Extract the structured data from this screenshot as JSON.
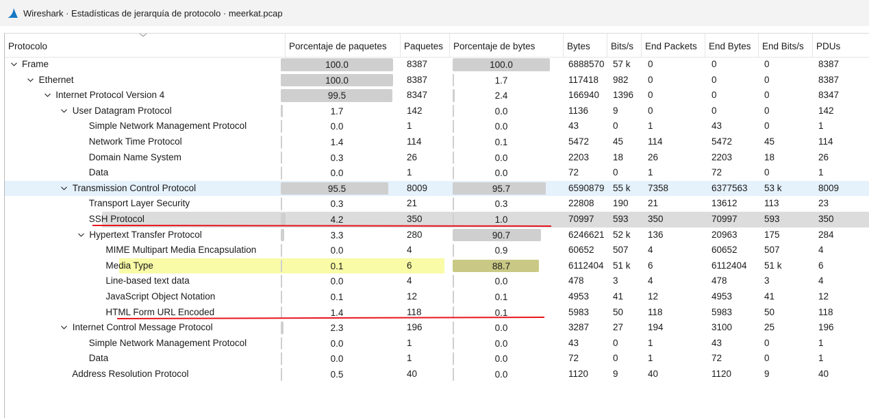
{
  "window": {
    "title": "Wireshark · Estadísticas de jerarquía de protocolo · meerkat.pcap",
    "icon": "wireshark-fin-icon"
  },
  "colors": {
    "bar_gray": "#cfcfcf",
    "selected_row": "#e5f1fb",
    "highlight_row": "#f9fba6",
    "highlight_bar": "#c9c985",
    "annotation_red": "#e8141c"
  },
  "columns": [
    "Protocolo",
    "Porcentaje de paquetes",
    "Paquetes",
    "Porcentaje de bytes",
    "Bytes",
    "Bits/s",
    "End Packets",
    "End Bytes",
    "End Bits/s",
    "PDUs"
  ],
  "rows": [
    {
      "name": "Frame",
      "level": 0,
      "expandable": true,
      "pkt_pct": "100.0",
      "packets": "8387",
      "byte_pct": "100.0",
      "bytes": "6888570",
      "bits": "57 k",
      "end_packets": "0",
      "end_bytes": "0",
      "end_bits": "0",
      "pdus": "8387"
    },
    {
      "name": "Ethernet",
      "level": 1,
      "expandable": true,
      "pkt_pct": "100.0",
      "packets": "8387",
      "byte_pct": "1.7",
      "bytes": "117418",
      "bits": "982",
      "end_packets": "0",
      "end_bytes": "0",
      "end_bits": "0",
      "pdus": "8387"
    },
    {
      "name": "Internet Protocol Version 4",
      "level": 2,
      "expandable": true,
      "pkt_pct": "99.5",
      "packets": "8347",
      "byte_pct": "2.4",
      "bytes": "166940",
      "bits": "1396",
      "end_packets": "0",
      "end_bytes": "0",
      "end_bits": "0",
      "pdus": "8347"
    },
    {
      "name": "User Datagram Protocol",
      "level": 3,
      "expandable": true,
      "pkt_pct": "1.7",
      "packets": "142",
      "byte_pct": "0.0",
      "bytes": "1136",
      "bits": "9",
      "end_packets": "0",
      "end_bytes": "0",
      "end_bits": "0",
      "pdus": "142"
    },
    {
      "name": "Simple Network Management Protocol",
      "level": 4,
      "expandable": false,
      "pkt_pct": "0.0",
      "packets": "1",
      "byte_pct": "0.0",
      "bytes": "43",
      "bits": "0",
      "end_packets": "1",
      "end_bytes": "43",
      "end_bits": "0",
      "pdus": "1"
    },
    {
      "name": "Network Time Protocol",
      "level": 4,
      "expandable": false,
      "pkt_pct": "1.4",
      "packets": "114",
      "byte_pct": "0.1",
      "bytes": "5472",
      "bits": "45",
      "end_packets": "114",
      "end_bytes": "5472",
      "end_bits": "45",
      "pdus": "114"
    },
    {
      "name": "Domain Name System",
      "level": 4,
      "expandable": false,
      "pkt_pct": "0.3",
      "packets": "26",
      "byte_pct": "0.0",
      "bytes": "2203",
      "bits": "18",
      "end_packets": "26",
      "end_bytes": "2203",
      "end_bits": "18",
      "pdus": "26"
    },
    {
      "name": "Data",
      "level": 4,
      "expandable": false,
      "pkt_pct": "0.0",
      "packets": "1",
      "byte_pct": "0.0",
      "bytes": "72",
      "bits": "0",
      "end_packets": "1",
      "end_bytes": "72",
      "end_bits": "0",
      "pdus": "1"
    },
    {
      "name": "Transmission Control Protocol",
      "level": 3,
      "expandable": true,
      "state": "selected",
      "pkt_pct": "95.5",
      "packets": "8009",
      "byte_pct": "95.7",
      "bytes": "6590879",
      "bits": "55 k",
      "end_packets": "7358",
      "end_bytes": "6377563",
      "end_bits": "53 k",
      "pdus": "8009"
    },
    {
      "name": "Transport Layer Security",
      "level": 4,
      "expandable": false,
      "pkt_pct": "0.3",
      "packets": "21",
      "byte_pct": "0.3",
      "bytes": "22808",
      "bits": "190",
      "end_packets": "21",
      "end_bytes": "13612",
      "end_bits": "113",
      "pdus": "23"
    },
    {
      "name": "SSH Protocol",
      "level": 4,
      "expandable": false,
      "state": "hover",
      "pkt_pct": "4.2",
      "packets": "350",
      "byte_pct": "1.0",
      "bytes": "70997",
      "bits": "593",
      "end_packets": "350",
      "end_bytes": "70997",
      "end_bits": "593",
      "pdus": "350"
    },
    {
      "name": "Hypertext Transfer Protocol",
      "level": 4,
      "expandable": true,
      "pkt_pct": "3.3",
      "packets": "280",
      "byte_pct": "90.7",
      "bytes": "6246621",
      "bits": "52 k",
      "end_packets": "136",
      "end_bytes": "20963",
      "end_bits": "175",
      "pdus": "284"
    },
    {
      "name": "MIME Multipart Media Encapsulation",
      "level": 5,
      "expandable": false,
      "pkt_pct": "0.0",
      "packets": "4",
      "byte_pct": "0.9",
      "bytes": "60652",
      "bits": "507",
      "end_packets": "4",
      "end_bytes": "60652",
      "end_bits": "507",
      "pdus": "4"
    },
    {
      "name": "Media Type",
      "level": 5,
      "expandable": false,
      "state": "highlight",
      "pkt_pct": "0.1",
      "packets": "6",
      "byte_pct": "88.7",
      "bytes": "6112404",
      "bits": "51 k",
      "end_packets": "6",
      "end_bytes": "6112404",
      "end_bits": "51 k",
      "pdus": "6"
    },
    {
      "name": "Line-based text data",
      "level": 5,
      "expandable": false,
      "pkt_pct": "0.0",
      "packets": "4",
      "byte_pct": "0.0",
      "bytes": "478",
      "bits": "3",
      "end_packets": "4",
      "end_bytes": "478",
      "end_bits": "3",
      "pdus": "4"
    },
    {
      "name": "JavaScript Object Notation",
      "level": 5,
      "expandable": false,
      "pkt_pct": "0.1",
      "packets": "12",
      "byte_pct": "0.1",
      "bytes": "4953",
      "bits": "41",
      "end_packets": "12",
      "end_bytes": "4953",
      "end_bits": "41",
      "pdus": "12"
    },
    {
      "name": "HTML Form URL Encoded",
      "level": 5,
      "expandable": false,
      "pkt_pct": "1.4",
      "packets": "118",
      "byte_pct": "0.1",
      "bytes": "5983",
      "bits": "50",
      "end_packets": "118",
      "end_bytes": "5983",
      "end_bits": "50",
      "pdus": "118"
    },
    {
      "name": "Internet Control Message Protocol",
      "level": 3,
      "expandable": true,
      "pkt_pct": "2.3",
      "packets": "196",
      "byte_pct": "0.0",
      "bytes": "3287",
      "bits": "27",
      "end_packets": "194",
      "end_bytes": "3100",
      "end_bits": "25",
      "pdus": "196"
    },
    {
      "name": "Simple Network Management Protocol",
      "level": 4,
      "expandable": false,
      "pkt_pct": "0.0",
      "packets": "1",
      "byte_pct": "0.0",
      "bytes": "43",
      "bits": "0",
      "end_packets": "1",
      "end_bytes": "43",
      "end_bits": "0",
      "pdus": "1"
    },
    {
      "name": "Data",
      "level": 4,
      "expandable": false,
      "pkt_pct": "0.0",
      "packets": "1",
      "byte_pct": "0.0",
      "bytes": "72",
      "bits": "0",
      "end_packets": "1",
      "end_bytes": "72",
      "end_bits": "0",
      "pdus": "1"
    },
    {
      "name": "Address Resolution Protocol",
      "level": 3,
      "expandable": false,
      "pkt_pct": "0.5",
      "packets": "40",
      "byte_pct": "0.0",
      "bytes": "1120",
      "bits": "9",
      "end_packets": "40",
      "end_bytes": "1120",
      "end_bits": "9",
      "pdus": "40"
    }
  ]
}
